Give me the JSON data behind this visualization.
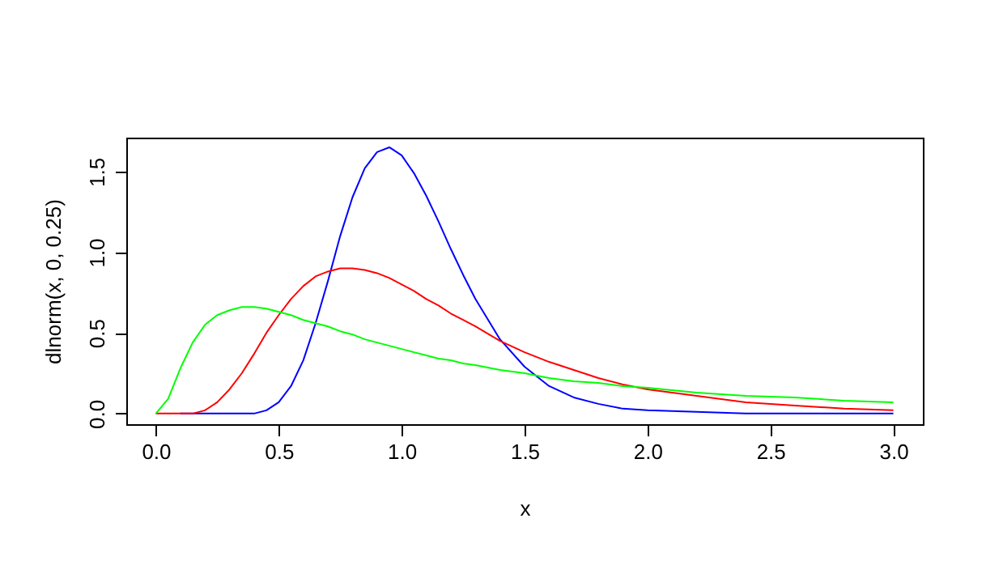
{
  "chart_data": {
    "type": "line",
    "xlabel": "x",
    "ylabel": "dlnorm(x, 0, 0.25)",
    "x": [
      0,
      0.05,
      0.1,
      0.15,
      0.2,
      0.25,
      0.3,
      0.35,
      0.4,
      0.45,
      0.5,
      0.55,
      0.6,
      0.65,
      0.7,
      0.75,
      0.8,
      0.85,
      0.9,
      0.95,
      1.0,
      1.05,
      1.1,
      1.15,
      1.2,
      1.25,
      1.3,
      1.4,
      1.5,
      1.6,
      1.7,
      1.8,
      1.9,
      2.0,
      2.2,
      2.4,
      2.6,
      2.8,
      3.0
    ],
    "series": [
      {
        "color": "#0000ff",
        "values": [
          null,
          null,
          0,
          0,
          0,
          0,
          0,
          0,
          0,
          0.02,
          0.07,
          0.17,
          0.33,
          0.56,
          0.82,
          1.1,
          1.34,
          1.52,
          1.62,
          1.65,
          1.6,
          1.49,
          1.35,
          1.19,
          1.02,
          0.86,
          0.71,
          0.46,
          0.29,
          0.17,
          0.1,
          0.06,
          0.03,
          0.02,
          0.01,
          0,
          0,
          0,
          0
        ]
      },
      {
        "color": "#ff0000",
        "values": [
          0,
          0,
          0,
          0,
          0.02,
          0.07,
          0.15,
          0.25,
          0.37,
          0.5,
          0.61,
          0.71,
          0.79,
          0.85,
          0.88,
          0.9,
          0.9,
          0.89,
          0.87,
          0.84,
          0.8,
          0.76,
          0.71,
          0.67,
          0.62,
          0.58,
          0.54,
          0.45,
          0.38,
          0.32,
          0.27,
          0.22,
          0.18,
          0.15,
          0.11,
          0.07,
          0.05,
          0.03,
          0.02
        ]
      },
      {
        "color": "#00ff00",
        "values": [
          0,
          0.09,
          0.28,
          0.44,
          0.55,
          0.61,
          0.64,
          0.66,
          0.66,
          0.65,
          0.63,
          0.61,
          0.58,
          0.56,
          0.54,
          0.51,
          0.49,
          0.46,
          0.44,
          0.42,
          0.4,
          0.38,
          0.36,
          0.34,
          0.33,
          0.31,
          0.3,
          0.27,
          0.25,
          0.22,
          0.2,
          0.19,
          0.17,
          0.16,
          0.13,
          0.11,
          0.1,
          0.08,
          0.07
        ]
      }
    ],
    "xlim": [
      -0.12,
      3.12
    ],
    "ylim": [
      -0.066,
      1.71
    ],
    "xticks": [
      {
        "value": 0,
        "label": "0.0"
      },
      {
        "value": 0.5,
        "label": "0.5"
      },
      {
        "value": 1,
        "label": "1.0"
      },
      {
        "value": 1.5,
        "label": "1.5"
      },
      {
        "value": 2,
        "label": "2.0"
      },
      {
        "value": 2.5,
        "label": "2.5"
      },
      {
        "value": 3,
        "label": "3.0"
      }
    ],
    "yticks": [
      {
        "value": 0,
        "label": "0.0"
      },
      {
        "value": 0.5,
        "label": "0.5"
      },
      {
        "value": 1,
        "label": "1.0"
      },
      {
        "value": 1.5,
        "label": "1.5"
      }
    ],
    "grid": false,
    "legend": false,
    "line_style": "solid",
    "marker": "none"
  }
}
